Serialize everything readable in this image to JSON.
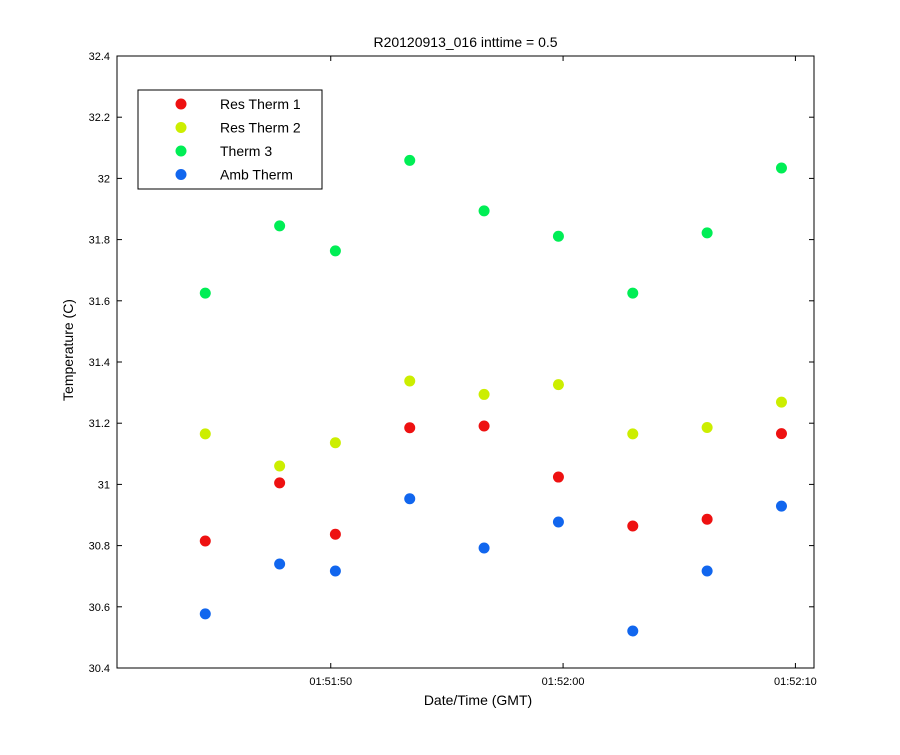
{
  "chart_data": {
    "type": "scatter",
    "title": "R20120913_016 inttime = 0.5",
    "xlabel": "Date/Time (GMT)",
    "ylabel": "Temperature (C)",
    "ylim": [
      30.4,
      32.4
    ],
    "yticks": [
      30.4,
      30.6,
      30.8,
      31,
      31.2,
      31.4,
      31.6,
      31.8,
      32,
      32.2,
      32.4
    ],
    "xlim": [
      "01:51:40.8",
      "01:52:10.8"
    ],
    "xticks": [
      "01:51:50",
      "01:52:00",
      "01:52:10"
    ],
    "x": [
      "01:51:44.6",
      "01:51:47.8",
      "01:51:50.2",
      "01:51:53.4",
      "01:51:56.6",
      "01:51:59.8",
      "01:52:03.0",
      "01:52:06.2",
      "01:52:09.4"
    ],
    "series": [
      {
        "name": "Res Therm 1",
        "color": "#ee1111",
        "values": [
          30.815,
          31.005,
          30.837,
          31.185,
          31.191,
          31.024,
          30.864,
          30.886,
          31.166
        ]
      },
      {
        "name": "Res Therm 2",
        "color": "#ccee00",
        "values": [
          31.165,
          31.06,
          31.136,
          31.338,
          31.294,
          31.326,
          31.165,
          31.186,
          31.269
        ]
      },
      {
        "name": "Therm 3",
        "color": "#00ee55",
        "values": [
          31.625,
          31.845,
          31.763,
          32.059,
          31.894,
          31.811,
          31.625,
          31.822,
          32.034
        ]
      },
      {
        "name": "Amb Therm",
        "color": "#1166ee",
        "values": [
          30.577,
          30.74,
          30.717,
          30.953,
          30.792,
          30.877,
          30.521,
          30.717,
          30.929
        ]
      }
    ],
    "grid": false,
    "legend_position": "top-left"
  }
}
